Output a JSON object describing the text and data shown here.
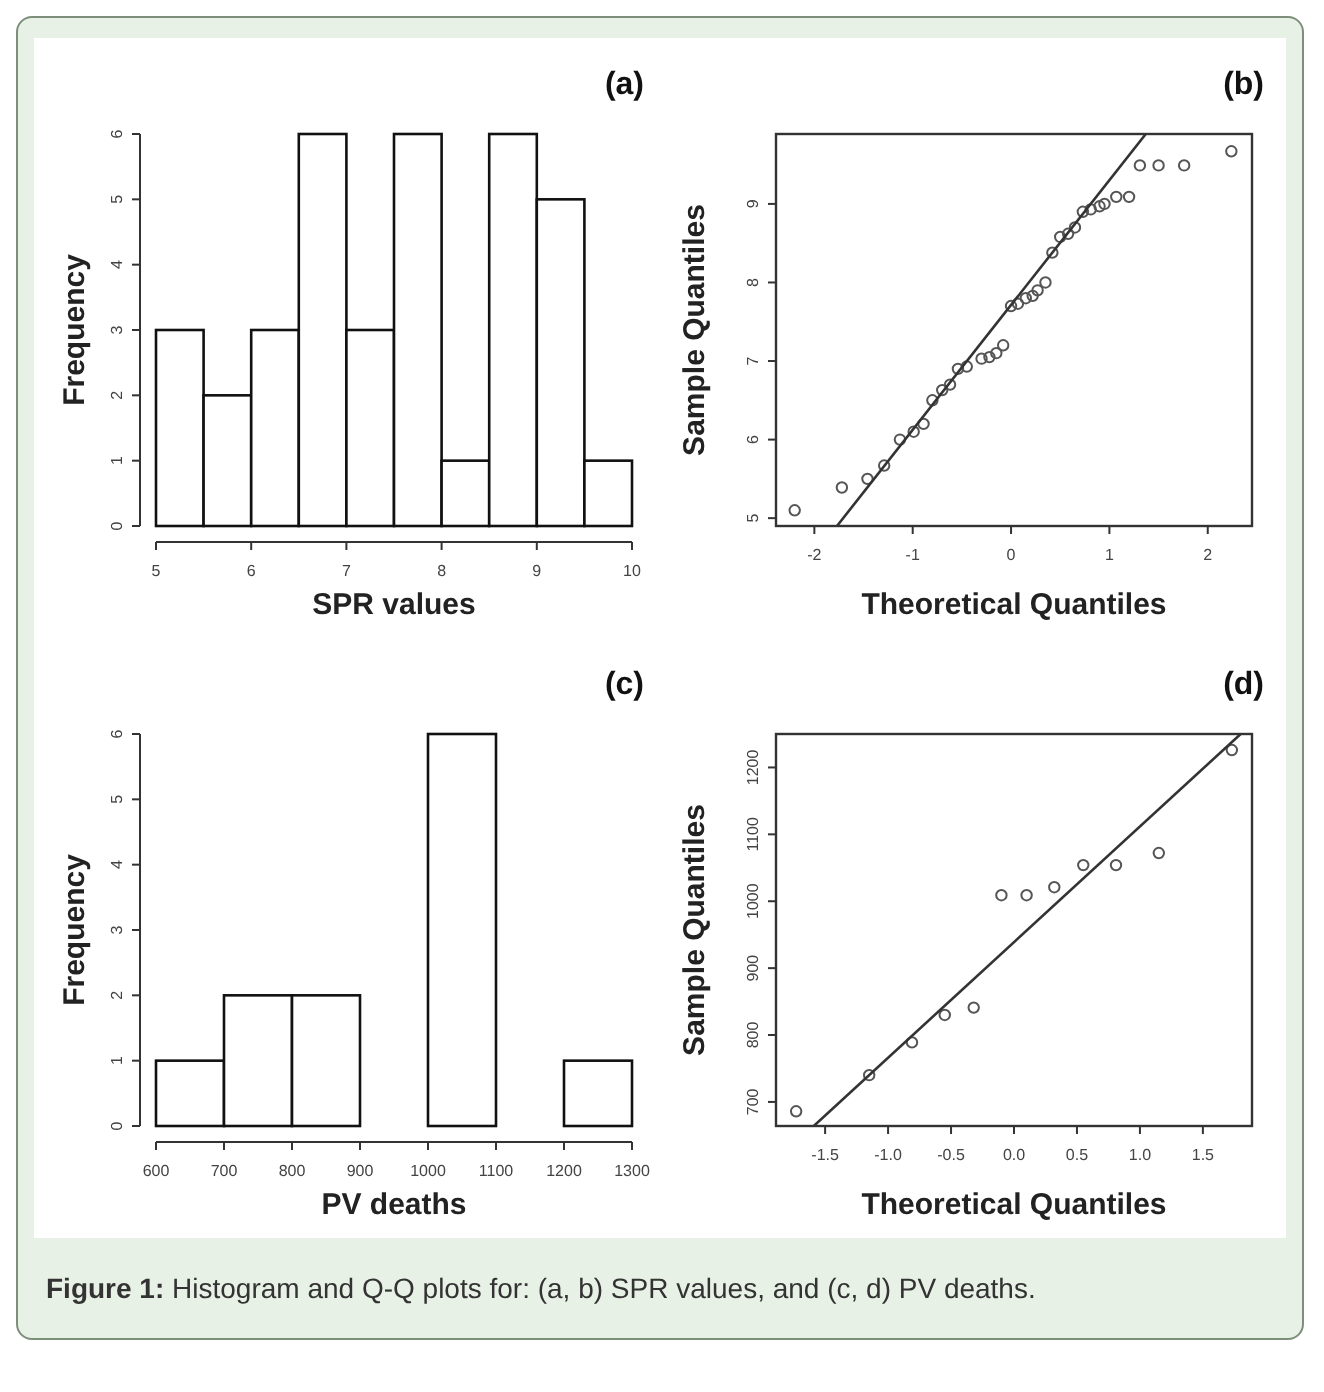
{
  "chart_data": [
    {
      "type": "histogram",
      "title": "(a)",
      "xlabel": "SPR values",
      "ylabel": "Frequency",
      "bins": [
        5,
        5.5,
        6,
        6.5,
        7,
        7.5,
        8,
        8.5,
        9,
        9.5,
        10
      ],
      "values": [
        3,
        2,
        3,
        6,
        3,
        6,
        1,
        6,
        5,
        1
      ],
      "color": "#ffffff",
      "xlim": [
        5,
        10
      ],
      "ylim": [
        0,
        6
      ],
      "xticks": [
        5,
        6,
        7,
        8,
        9,
        10
      ],
      "yticks": [
        0,
        1,
        2,
        3,
        4,
        5,
        6
      ]
    },
    {
      "type": "scatter",
      "title": "(b)",
      "xlabel": "Theoretical Quantiles",
      "ylabel": "Sample Quantiles",
      "xlim": [
        -2.39,
        2.45
      ],
      "ylim": [
        4.9,
        9.89
      ],
      "xticks": [
        -2,
        -1,
        0,
        1,
        2
      ],
      "yticks": [
        5,
        6,
        7,
        8,
        9
      ],
      "series": [
        {
          "type": "scatter",
          "marker": "circle",
          "color": "#555555",
          "x": [
            -2.2,
            -1.72,
            -1.46,
            -1.29,
            -1.13,
            -0.99,
            -0.89,
            -0.8,
            -0.7,
            -0.62,
            -0.54,
            -0.45,
            -0.3,
            -0.22,
            -0.15,
            -0.08,
            0,
            0.07,
            0.15,
            0.22,
            0.27,
            0.35,
            0.42,
            0.5,
            0.58,
            0.65,
            0.73,
            0.81,
            0.9,
            0.95,
            1.07,
            1.2,
            1.31,
            1.5,
            1.76,
            2.24
          ],
          "values": [
            5.1,
            5.39,
            5.5,
            5.67,
            6,
            6.1,
            6.2,
            6.5,
            6.63,
            6.7,
            6.9,
            6.93,
            7.03,
            7.05,
            7.1,
            7.2,
            7.7,
            7.73,
            7.8,
            7.83,
            7.9,
            8,
            8.38,
            8.58,
            8.62,
            8.7,
            8.9,
            8.93,
            8.97,
            9,
            9.09,
            9.09,
            9.49,
            9.49,
            9.49,
            9.67
          ]
        },
        {
          "type": "line",
          "marker": "none",
          "color": "#333333",
          "x": [
            -1.77,
            1.37
          ],
          "values": [
            4.9,
            9.89
          ]
        }
      ]
    },
    {
      "type": "histogram",
      "title": "(c)",
      "xlabel": "PV deaths",
      "ylabel": "Frequency",
      "bins": [
        600,
        700,
        800,
        900,
        1000,
        1100,
        1200,
        1300
      ],
      "values": [
        1,
        2,
        2,
        0,
        6,
        0,
        1
      ],
      "color": "#ffffff",
      "xlim": [
        600,
        1300
      ],
      "ylim": [
        0,
        6
      ],
      "xticks": [
        600,
        700,
        800,
        900,
        1000,
        1100,
        1200,
        1300
      ],
      "yticks": [
        0,
        1,
        2,
        3,
        4,
        5,
        6
      ]
    },
    {
      "type": "scatter",
      "title": "(d)",
      "xlabel": "Theoretical Quantiles",
      "ylabel": "Sample Quantiles",
      "xlim": [
        -1.89,
        1.89
      ],
      "ylim": [
        664,
        1250
      ],
      "xticks": [
        {
          "value": -1.5,
          "label": "-1.5"
        },
        {
          "value": -1,
          "label": "-1.0"
        },
        {
          "value": -0.5,
          "label": "-0.5"
        },
        {
          "value": 0,
          "label": "0.0"
        },
        {
          "value": 0.5,
          "label": "0.5"
        },
        {
          "value": 1,
          "label": "1.0"
        },
        {
          "value": 1.5,
          "label": "1.5"
        }
      ],
      "yticks": [
        700,
        800,
        900,
        1000,
        1100,
        1200
      ],
      "series": [
        {
          "type": "scatter",
          "marker": "circle",
          "color": "#555555",
          "x": [
            -1.73,
            -1.15,
            -0.81,
            -0.55,
            -0.32,
            -0.1,
            0.1,
            0.32,
            0.55,
            0.81,
            1.15,
            1.73
          ],
          "values": [
            686,
            740,
            789,
            830,
            841,
            1009,
            1009,
            1021,
            1054,
            1054,
            1072,
            1226
          ]
        },
        {
          "type": "line",
          "marker": "none",
          "color": "#333333",
          "x": [
            -1.59,
            1.8
          ],
          "values": [
            664,
            1250
          ]
        }
      ],
      "annotations": [
        "Figure 1:",
        "Histogram and Q-Q plots for:  (a, b) SPR values, and (c, d) PV deaths."
      ]
    }
  ]
}
